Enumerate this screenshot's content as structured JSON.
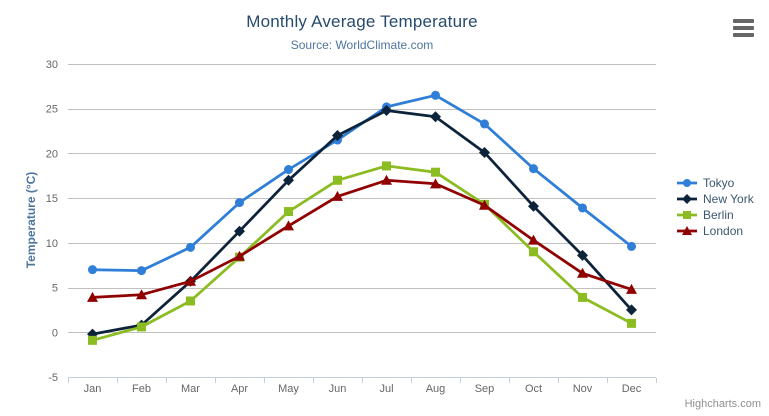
{
  "chart_data": {
    "type": "line",
    "title": "Monthly Average Temperature",
    "subtitle": "Source: WorldClimate.com",
    "categories": [
      "Jan",
      "Feb",
      "Mar",
      "Apr",
      "May",
      "Jun",
      "Jul",
      "Aug",
      "Sep",
      "Oct",
      "Nov",
      "Dec"
    ],
    "xlabel": "",
    "ylabel": "Temperature (°C)",
    "ylim": [
      -5,
      30
    ],
    "yticks": [
      -5,
      0,
      5,
      10,
      15,
      20,
      25,
      30
    ],
    "grid": "horizontal-only",
    "legend_position": "right-middle",
    "series": [
      {
        "name": "Tokyo",
        "marker": "circle",
        "color": "#2f7ed8",
        "values": [
          7.0,
          6.9,
          9.5,
          14.5,
          18.2,
          21.5,
          25.2,
          26.5,
          23.3,
          18.3,
          13.9,
          9.6
        ]
      },
      {
        "name": "New York",
        "marker": "diamond",
        "color": "#0d233a",
        "values": [
          -0.2,
          0.8,
          5.7,
          11.3,
          17.0,
          22.0,
          24.8,
          24.1,
          20.1,
          14.1,
          8.6,
          2.5
        ]
      },
      {
        "name": "Berlin",
        "marker": "square",
        "color": "#8bbc21",
        "values": [
          -0.9,
          0.6,
          3.5,
          8.4,
          13.5,
          17.0,
          18.6,
          17.9,
          14.3,
          9.0,
          3.9,
          1.0
        ]
      },
      {
        "name": "London",
        "marker": "triangle",
        "color": "#910000",
        "values": [
          3.9,
          4.2,
          5.7,
          8.5,
          11.9,
          15.2,
          17.0,
          16.6,
          14.2,
          10.3,
          6.6,
          4.8
        ]
      }
    ]
  },
  "colors": {
    "title": "#274b6d",
    "subtitle": "#4d759e",
    "axis_title": "#4d759e",
    "tick_label": "#666666",
    "grid_line": "#c0c0c0",
    "axis_line": "#c0d0e0",
    "legend_text": "#3e576f",
    "credit": "#909090",
    "burger_icon": "#666666"
  },
  "icons": {
    "context_menu": "hamburger-icon"
  },
  "credits": "Highcharts.com"
}
